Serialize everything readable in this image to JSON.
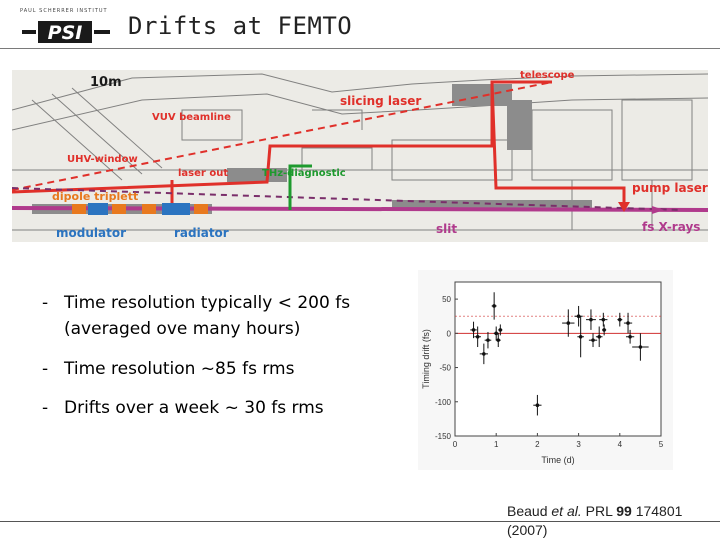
{
  "header": {
    "logo_small_text": "PAUL SCHERRER INSTITUT",
    "logo_text": "PSI",
    "title": "Drifts at FEMTO"
  },
  "diagram_labels": {
    "scale": "10m",
    "telescope": "telescope",
    "slicing_laser": "slicing laser",
    "vuv_beamline": "VUV beamline",
    "uhv_window": "UHV-window",
    "laser_out": "laser out",
    "thz_diagnostic": "THz-diagnostic",
    "dipole_triplett": "dipole triplett",
    "modulator": "modulator",
    "radiator": "radiator",
    "slit": "slit",
    "pump_laser": "pump laser",
    "fs_xrays": "fs X-rays"
  },
  "bullets": [
    {
      "dash": "-",
      "line1": "Time resolution typically < 200 fs",
      "line2": "(averaged ove many hours)"
    },
    {
      "dash": "-",
      "line1": "Time resolution ~85 fs rms"
    },
    {
      "dash": "-",
      "line1": "Drifts over a week ~ 30 fs rms"
    }
  ],
  "citation": {
    "author": "Beaud ",
    "etal": "et al.",
    "journal": " PRL ",
    "volume": "99",
    "page": " 174801",
    "year": "(2007)"
  },
  "chart_data": {
    "type": "scatter",
    "xlabel": "Time (d)",
    "ylabel": "Timing drift (fs)",
    "xlim": [
      0,
      5
    ],
    "ylim": [
      -150,
      75
    ],
    "xticks": [
      0,
      1,
      2,
      3,
      4,
      5
    ],
    "yticks": [
      50,
      0,
      -50,
      -100,
      -150
    ],
    "reference_line_y": 0,
    "points": [
      {
        "x": 0.45,
        "y": 5,
        "ex": 0.08,
        "ey": 12
      },
      {
        "x": 0.55,
        "y": -5,
        "ex": 0.08,
        "ey": 15
      },
      {
        "x": 0.7,
        "y": -30,
        "ex": 0.1,
        "ey": 15
      },
      {
        "x": 0.8,
        "y": -10,
        "ex": 0.08,
        "ey": 12
      },
      {
        "x": 0.95,
        "y": 40,
        "ex": 0.06,
        "ey": 20
      },
      {
        "x": 1.0,
        "y": 0,
        "ex": 0.06,
        "ey": 10
      },
      {
        "x": 1.05,
        "y": -10,
        "ex": 0.06,
        "ey": 10
      },
      {
        "x": 1.1,
        "y": 5,
        "ex": 0.05,
        "ey": 8
      },
      {
        "x": 2.0,
        "y": -105,
        "ex": 0.1,
        "ey": 15
      },
      {
        "x": 2.75,
        "y": 15,
        "ex": 0.15,
        "ey": 20
      },
      {
        "x": 3.0,
        "y": 25,
        "ex": 0.1,
        "ey": 15
      },
      {
        "x": 3.05,
        "y": -5,
        "ex": 0.08,
        "ey": 30
      },
      {
        "x": 3.3,
        "y": 20,
        "ex": 0.12,
        "ey": 15
      },
      {
        "x": 3.35,
        "y": -10,
        "ex": 0.1,
        "ey": 10
      },
      {
        "x": 3.5,
        "y": -5,
        "ex": 0.08,
        "ey": 15
      },
      {
        "x": 3.6,
        "y": 20,
        "ex": 0.1,
        "ey": 10
      },
      {
        "x": 3.62,
        "y": 5,
        "ex": 0.05,
        "ey": 8
      },
      {
        "x": 4.0,
        "y": 20,
        "ex": 0.06,
        "ey": 10
      },
      {
        "x": 4.2,
        "y": 15,
        "ex": 0.1,
        "ey": 15
      },
      {
        "x": 4.25,
        "y": -5,
        "ex": 0.1,
        "ey": 10
      },
      {
        "x": 4.5,
        "y": -20,
        "ex": 0.2,
        "ey": 20
      }
    ]
  }
}
